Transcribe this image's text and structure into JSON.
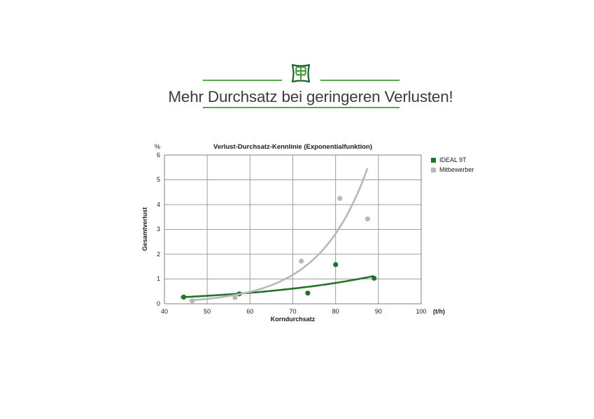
{
  "page": {
    "background": "#ffffff"
  },
  "header": {
    "title": "Mehr Durchsatz bei geringeren Verlusten!",
    "icon": "grain-stamp-icon"
  },
  "colors": {
    "title_text": "#3c3c3c",
    "header_line_green": "#5aa34f",
    "icon_frame_green": "#1c642b",
    "icon_wheat_green": "#3f9b37",
    "ideal_green": "#257328",
    "competitor_gray": "#b8b8b8",
    "grid_gray": "#9e9e9e",
    "plot_border_gray": "#7f7f7f",
    "label_black": "#1a1a1a"
  },
  "chart_data": {
    "type": "scatter",
    "title": "Verlust-Durchsatz-Kennlinie (Exponentialfunktion)",
    "xlabel": "Korndurchsatz",
    "ylabel": "Gesamtverlust",
    "x_unit": "(t/h)",
    "y_unit": "%",
    "xlim": [
      40,
      100
    ],
    "ylim": [
      0,
      6
    ],
    "x_ticks": [
      40,
      50,
      60,
      70,
      80,
      90,
      100
    ],
    "y_ticks": [
      0,
      1,
      2,
      3,
      4,
      5,
      6
    ],
    "grid": true,
    "legend_position": "outside-top-right",
    "series": [
      {
        "name": "IDEAL 9T",
        "color": "#257328",
        "points": [
          [
            44.5,
            0.27
          ],
          [
            57.5,
            0.4
          ],
          [
            73.5,
            0.43
          ],
          [
            80,
            1.58
          ],
          [
            89,
            1.03
          ]
        ],
        "trend": {
          "type": "exponential",
          "a": 0.065,
          "b": 0.032,
          "x_start": 44,
          "x_end": 88.8
        }
      },
      {
        "name": "Mitbewerber",
        "color": "#b8b8b8",
        "points": [
          [
            46.5,
            0.12
          ],
          [
            56.5,
            0.25
          ],
          [
            72,
            1.72
          ],
          [
            81,
            4.25
          ],
          [
            87.5,
            3.42
          ]
        ],
        "trend": {
          "type": "exponential",
          "a": 0.00238,
          "b": 0.0885,
          "x_start": 46,
          "x_end": 87.4
        }
      }
    ]
  }
}
